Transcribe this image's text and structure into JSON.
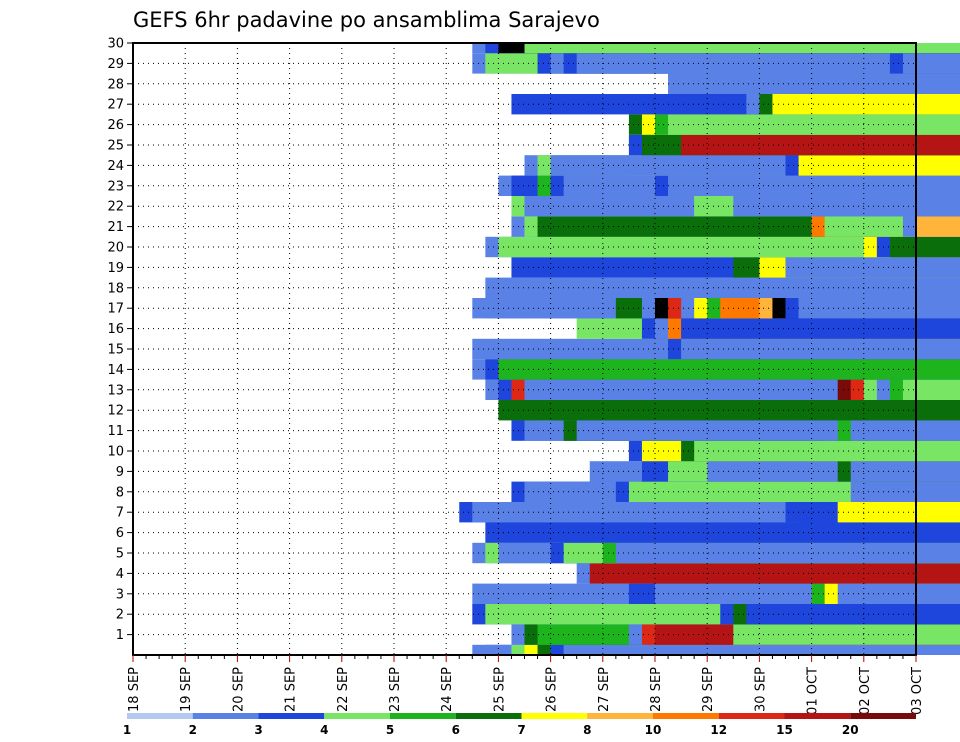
{
  "chart_data": {
    "type": "heatmap",
    "title": "GEFS 6hr padavine po ansamblima Sarajevo",
    "xlabel": "",
    "ylabel": "",
    "x_tick_labels": [
      "18 SEP",
      "19 SEP",
      "20 SEP",
      "21 SEP",
      "22 SEP",
      "23 SEP",
      "24 SEP",
      "25 SEP",
      "26 SEP",
      "27 SEP",
      "28 SEP",
      "29 SEP",
      "30 SEP",
      "01 OCT",
      "02 OCT",
      "03 OCT"
    ],
    "y_tick_labels": [
      "1",
      "2",
      "3",
      "4",
      "5",
      "6",
      "7",
      "8",
      "9",
      "10",
      "11",
      "12",
      "13",
      "14",
      "15",
      "16",
      "17",
      "18",
      "19",
      "20",
      "21",
      "22",
      "23",
      "24",
      "25",
      "26",
      "27",
      "28",
      "29",
      "30"
    ],
    "x_range_days": [
      0,
      15
    ],
    "y_range": [
      0,
      30
    ],
    "grid": true,
    "legend": "colorbar-bottom",
    "colorbar_labels": [
      "1",
      "2",
      "3",
      "4",
      "5",
      "6",
      "7",
      "8",
      "10",
      "12",
      "15",
      "20"
    ],
    "colorbar_colors": [
      "#b4c8f0",
      "#5a82e6",
      "#1e46dc",
      "#78e664",
      "#1eb41e",
      "#0a6e0a",
      "#ffff00",
      "#ffb43c",
      "#ff7800",
      "#dc2814",
      "#b41414",
      "#780a0a"
    ],
    "cell_hours": 6,
    "cells": [
      [
        0,
        6.5,
        25.25,
        1
      ],
      [
        0,
        6.75,
        25.5,
        1
      ],
      [
        0,
        7.25,
        25.75,
        3
      ],
      [
        0,
        7.5,
        26,
        6
      ],
      [
        0,
        7.75,
        26.25,
        5
      ],
      [
        0,
        8,
        26.5,
        2
      ],
      [
        0,
        8.25,
        26.75,
        1
      ],
      [
        1,
        7.25,
        25.5,
        1
      ],
      [
        1,
        7.5,
        25.75,
        5
      ],
      [
        1,
        7.75,
        26,
        4
      ],
      [
        1,
        9.5,
        28,
        1
      ],
      [
        1,
        9.75,
        28.25,
        9
      ],
      [
        1,
        10,
        28.5,
        10
      ],
      [
        1,
        11.5,
        30,
        3
      ],
      [
        2,
        6.5,
        25.25,
        2
      ],
      [
        2,
        6.75,
        25.5,
        3
      ],
      [
        2,
        11.25,
        29.75,
        2
      ],
      [
        2,
        11.5,
        30,
        5
      ],
      [
        2,
        11.75,
        30.25,
        2
      ],
      [
        3,
        6.5,
        25,
        1
      ],
      [
        3,
        9.5,
        27.5,
        2
      ],
      [
        3,
        10,
        28,
        1
      ],
      [
        3,
        13,
        31.5,
        4
      ],
      [
        3,
        13.25,
        31.75,
        6
      ],
      [
        3,
        13.5,
        32.5,
        1
      ],
      [
        4,
        8.5,
        27,
        1
      ],
      [
        4,
        8.75,
        27.25,
        10
      ],
      [
        5,
        6.5,
        25.25,
        1
      ],
      [
        5,
        6.75,
        25.5,
        3
      ],
      [
        5,
        7,
        25.75,
        1
      ],
      [
        5,
        8,
        26.5,
        2
      ],
      [
        5,
        8.25,
        26.75,
        3
      ],
      [
        5,
        8.75,
        27.25,
        3
      ],
      [
        5,
        9,
        27.5,
        4
      ],
      [
        5,
        9.25,
        27.75,
        1
      ],
      [
        6,
        6.75,
        25,
        2
      ],
      [
        7,
        6.25,
        24.75,
        2
      ],
      [
        7,
        6.5,
        25,
        1
      ],
      [
        7,
        12.5,
        30.75,
        2
      ],
      [
        7,
        12.75,
        31.5,
        2
      ],
      [
        7,
        13.5,
        31.75,
        6
      ],
      [
        8,
        7.25,
        25.5,
        2
      ],
      [
        8,
        7.5,
        25.75,
        1
      ],
      [
        8,
        9.25,
        27.5,
        2
      ],
      [
        8,
        9.5,
        27.75,
        3
      ],
      [
        8,
        13.75,
        32.25,
        1
      ],
      [
        9,
        8.75,
        27,
        1
      ],
      [
        9,
        9.75,
        28.25,
        2
      ],
      [
        9,
        10.25,
        29,
        3
      ],
      [
        9,
        11,
        29.25,
        1
      ],
      [
        9,
        13.5,
        31.75,
        5
      ],
      [
        9,
        13.75,
        32,
        1
      ],
      [
        10,
        9.5,
        27.75,
        2
      ],
      [
        10,
        9.75,
        28,
        6
      ],
      [
        10,
        10.5,
        28.75,
        5
      ],
      [
        10,
        10.75,
        29,
        3
      ],
      [
        11,
        7.25,
        25.5,
        2
      ],
      [
        11,
        7.5,
        25.75,
        1
      ],
      [
        11,
        8.25,
        26.25,
        5
      ],
      [
        11,
        8.5,
        26.5,
        1
      ],
      [
        11,
        13.25,
        31.5,
        1
      ],
      [
        11,
        13.5,
        31.75,
        4
      ],
      [
        11,
        13.75,
        32,
        1
      ],
      [
        12,
        7.25,
        25.5,
        2
      ],
      [
        12,
        7.5,
        25.75,
        1
      ],
      [
        12,
        7.75,
        26,
        3
      ],
      [
        12,
        8,
        26.25,
        2
      ],
      [
        12,
        8.25,
        26.5,
        1
      ],
      [
        12,
        7,
        25.25,
        5
      ],
      [
        13,
        6.75,
        25,
        1
      ],
      [
        13,
        7,
        25.25,
        2
      ],
      [
        13,
        7.25,
        25.5,
        9
      ],
      [
        13,
        7.5,
        26.25,
        1
      ],
      [
        13,
        13.25,
        31.5,
        1
      ],
      [
        13,
        13.5,
        31.75,
        11
      ],
      [
        13,
        13.75,
        32,
        9
      ],
      [
        13,
        14,
        32.25,
        3
      ],
      [
        13,
        14.25,
        32.5,
        1
      ],
      [
        13,
        14.5,
        32.75,
        4
      ],
      [
        13,
        14.75,
        33,
        3
      ],
      [
        14,
        6.5,
        25,
        1
      ],
      [
        14,
        6.75,
        25.25,
        2
      ],
      [
        14,
        7,
        25.5,
        4
      ],
      [
        15,
        6.5,
        25,
        1
      ],
      [
        15,
        10,
        28.25,
        1
      ],
      [
        15,
        10.25,
        28.5,
        2
      ],
      [
        15,
        10.5,
        28.75,
        1
      ],
      [
        16,
        8.5,
        27,
        3
      ],
      [
        16,
        9.75,
        28,
        2
      ],
      [
        16,
        10,
        28.25,
        1
      ],
      [
        16,
        10.25,
        28.5,
        8
      ],
      [
        16,
        10.5,
        28.75,
        2
      ],
      [
        17,
        6.5,
        25,
        1
      ],
      [
        17,
        6.75,
        25.25,
        1
      ],
      [
        17,
        8.5,
        26.75,
        1
      ],
      [
        17,
        8.75,
        27,
        1
      ],
      [
        17,
        9.25,
        27.5,
        5
      ],
      [
        17,
        9.75,
        28,
        1
      ],
      [
        17,
        10,
        28.25,
        12
      ],
      [
        17,
        10.25,
        28.5,
        9
      ],
      [
        17,
        10.5,
        29,
        1
      ],
      [
        17,
        10.75,
        29.25,
        6
      ],
      [
        17,
        11,
        29.5,
        4
      ],
      [
        17,
        11.25,
        29.75,
        8
      ],
      [
        17,
        12,
        30.25,
        7
      ],
      [
        17,
        12.25,
        30.5,
        12
      ],
      [
        17,
        12.5,
        30.75,
        2
      ],
      [
        17,
        12.75,
        31,
        1
      ],
      [
        18,
        6.75,
        25.25,
        1
      ],
      [
        19,
        7.25,
        25.5,
        2
      ],
      [
        19,
        11.5,
        30.25,
        5
      ],
      [
        19,
        12,
        30.5,
        6
      ],
      [
        19,
        12.5,
        30.75,
        1
      ],
      [
        19,
        13,
        31.25,
        1
      ],
      [
        20,
        6.75,
        25,
        1
      ],
      [
        20,
        7,
        25.25,
        3
      ],
      [
        20,
        14,
        32.5,
        6
      ],
      [
        20,
        14.25,
        32.75,
        2
      ],
      [
        20,
        14.5,
        33,
        5
      ],
      [
        21,
        7.25,
        25.5,
        1
      ],
      [
        21,
        7.5,
        25.75,
        3
      ],
      [
        21,
        7.75,
        26,
        5
      ],
      [
        21,
        13,
        31.25,
        8
      ],
      [
        21,
        13.25,
        31.5,
        3
      ],
      [
        21,
        14.75,
        33,
        1
      ],
      [
        21,
        15,
        33.25,
        7
      ],
      [
        22,
        7.25,
        25.5,
        3
      ],
      [
        22,
        7.5,
        25.75,
        1
      ],
      [
        22,
        10.75,
        29.25,
        3
      ],
      [
        22,
        11.5,
        30,
        1
      ],
      [
        22,
        12.75,
        31,
        1
      ],
      [
        23,
        7,
        25.25,
        1
      ],
      [
        23,
        7.25,
        25.75,
        2
      ],
      [
        23,
        7.75,
        26,
        4
      ],
      [
        23,
        8,
        26.25,
        2
      ],
      [
        23,
        8.25,
        26.5,
        1
      ],
      [
        23,
        9.5,
        27.75,
        1
      ],
      [
        23,
        10,
        28.25,
        2
      ],
      [
        23,
        10.25,
        28.5,
        1
      ],
      [
        24,
        7.5,
        25.75,
        1
      ],
      [
        24,
        7.75,
        26,
        3
      ],
      [
        24,
        8,
        26.25,
        1
      ],
      [
        24,
        12.5,
        30.75,
        2
      ],
      [
        24,
        12.75,
        31,
        6
      ],
      [
        25,
        9.5,
        27.75,
        2
      ],
      [
        25,
        9.75,
        28,
        5
      ],
      [
        25,
        10.5,
        28.75,
        10
      ],
      [
        26,
        9.5,
        27.75,
        5
      ],
      [
        26,
        9.75,
        28,
        6
      ],
      [
        26,
        10,
        28.25,
        4
      ],
      [
        26,
        10.25,
        28.5,
        3
      ],
      [
        27,
        7.25,
        26.25,
        2
      ],
      [
        27,
        11.75,
        30.25,
        1
      ],
      [
        27,
        12,
        30.5,
        5
      ],
      [
        27,
        12.25,
        30.75,
        6
      ],
      [
        28,
        10.25,
        28.75,
        1
      ],
      [
        29,
        6.5,
        25,
        1
      ],
      [
        29,
        6.75,
        25.25,
        3
      ],
      [
        29,
        7.5,
        25.75,
        3
      ],
      [
        29,
        7.75,
        26,
        2
      ],
      [
        29,
        8,
        26.25,
        1
      ],
      [
        29,
        8.25,
        26.5,
        2
      ],
      [
        29,
        8.5,
        26.75,
        1
      ],
      [
        29,
        14.5,
        33,
        2
      ],
      [
        29,
        14.75,
        33.25,
        1
      ],
      [
        30,
        6.5,
        25,
        1
      ],
      [
        30,
        6.75,
        25.25,
        2
      ],
      [
        30,
        7,
        25.5,
        12
      ],
      [
        30,
        7.5,
        25.75,
        3
      ]
    ]
  }
}
